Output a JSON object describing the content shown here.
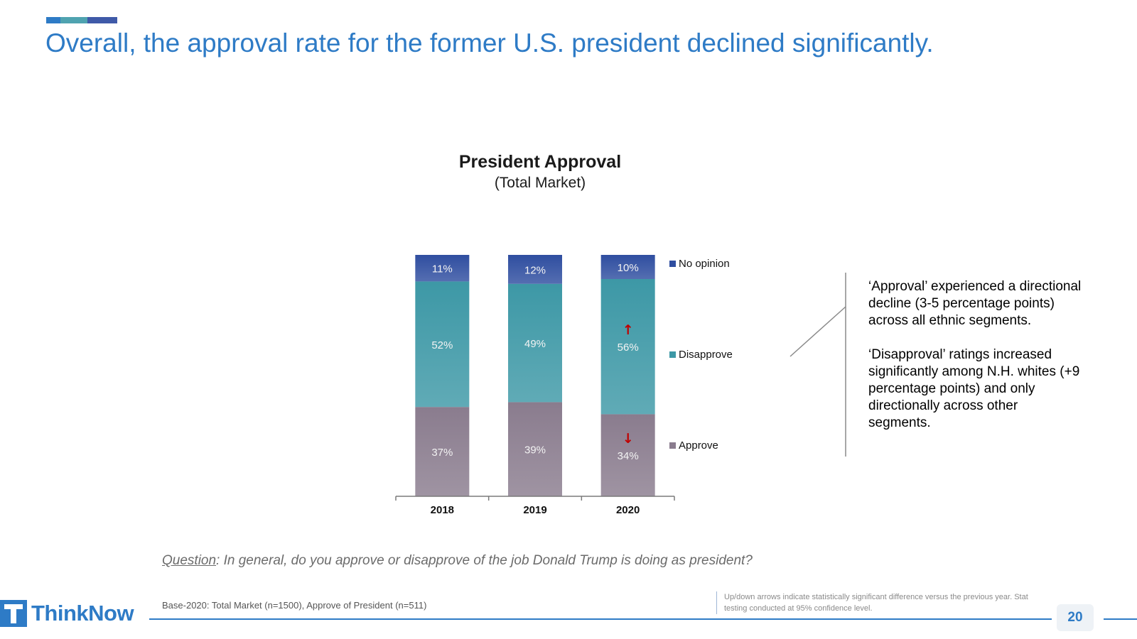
{
  "slide": {
    "title": "Overall, the approval rate for the former U.S. president declined significantly.",
    "accent_colors": [
      "#2e7bc6",
      "#4fa3b0",
      "#3f5aa8"
    ]
  },
  "chart_data": {
    "type": "bar",
    "stacked": true,
    "title": "President Approval",
    "subtitle": "(Total Market)",
    "categories": [
      "2018",
      "2019",
      "2020"
    ],
    "series": [
      {
        "name": "Approve",
        "values": [
          37,
          39,
          34
        ],
        "labels": [
          "37%",
          "39%",
          "34%"
        ],
        "color": "#8a7c8e"
      },
      {
        "name": "Disapprove",
        "values": [
          52,
          49,
          56
        ],
        "labels": [
          "52%",
          "49%",
          "56%"
        ],
        "color": "#3d98a6"
      },
      {
        "name": "No opinion",
        "values": [
          11,
          12,
          10
        ],
        "labels": [
          "11%",
          "12%",
          "10%"
        ],
        "color": "#2f4ea0"
      }
    ],
    "significance": [
      {
        "category": "2020",
        "series": "Disapprove",
        "direction": "up"
      },
      {
        "category": "2020",
        "series": "Approve",
        "direction": "down"
      }
    ],
    "legend_position": "right",
    "ylim": [
      0,
      100
    ],
    "grid": false
  },
  "commentary": [
    "‘Approval’ experienced a directional decline (3-5 percentage points) across all ethnic segments.",
    "‘Disapproval’ ratings increased significantly among N.H. whites (+9 percentage points) and only directionally across other segments."
  ],
  "question": {
    "label": "Question",
    "text": ": In general, do you approve or disapprove of the job Donald Trump is doing as president?"
  },
  "footer": {
    "base": "Base-2020: Total Market (n=1500), Approve of President (n=511)",
    "stat_note": "Up/down arrows indicate statistically significant difference versus the previous year.  Stat testing conducted at 95% confidence level.",
    "page_number": "20",
    "logo_text": "ThinkNow",
    "brand_color": "#2e7bc6"
  }
}
